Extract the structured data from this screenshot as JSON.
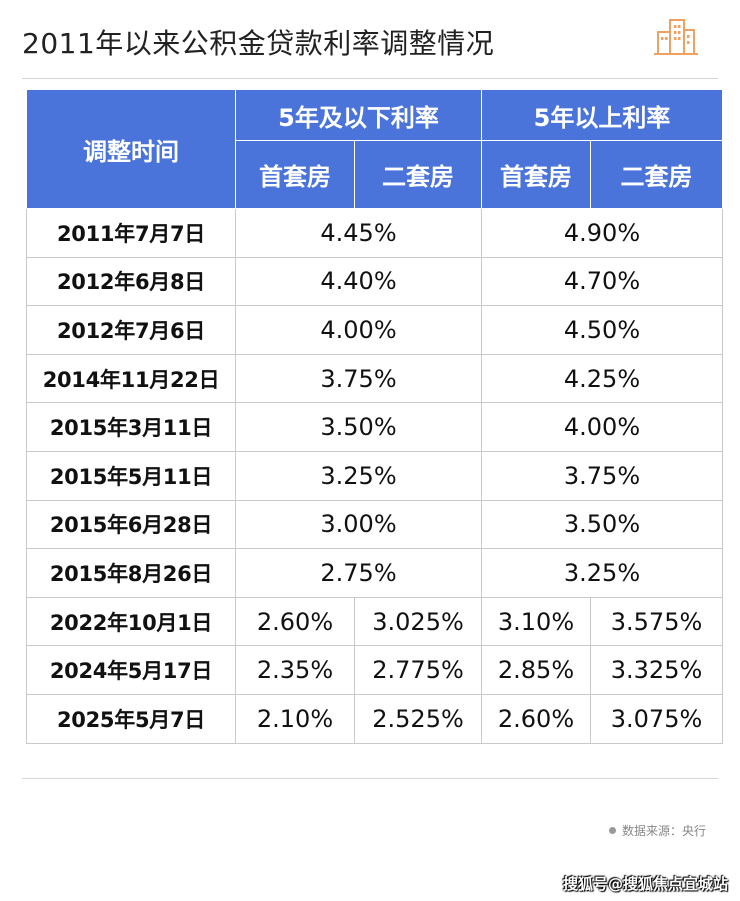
{
  "title": "2011年以来公积金贷款利率调整情况",
  "logo_icon": "buildings-icon",
  "colors": {
    "header_bg": "#4a74d9",
    "logo": "#f0a060"
  },
  "table": {
    "header": {
      "date_col": "调整时间",
      "group_short": "5年及以下利率",
      "group_long": "5年以上利率",
      "first_home": "首套房",
      "second_home": "二套房"
    },
    "rows": [
      {
        "date": "2011年7月7日",
        "short": "4.45%",
        "long": "4.90%"
      },
      {
        "date": "2012年6月8日",
        "short": "4.40%",
        "long": "4.70%"
      },
      {
        "date": "2012年7月6日",
        "short": "4.00%",
        "long": "4.50%"
      },
      {
        "date": "2014年11月22日",
        "short": "3.75%",
        "long": "4.25%"
      },
      {
        "date": "2015年3月11日",
        "short": "3.50%",
        "long": "4.00%"
      },
      {
        "date": "2015年5月11日",
        "short": "3.25%",
        "long": "3.75%"
      },
      {
        "date": "2015年6月28日",
        "short": "3.00%",
        "long": "3.50%"
      },
      {
        "date": "2015年8月26日",
        "short": "2.75%",
        "long": "3.25%"
      },
      {
        "date": "2022年10月1日",
        "short_first": "2.60%",
        "short_second": "3.025%",
        "long_first": "3.10%",
        "long_second": "3.575%"
      },
      {
        "date": "2024年5月17日",
        "short_first": "2.35%",
        "short_second": "2.775%",
        "long_first": "2.85%",
        "long_second": "3.325%"
      },
      {
        "date": "2025年5月7日",
        "short_first": "2.10%",
        "short_second": "2.525%",
        "long_first": "2.60%",
        "long_second": "3.075%"
      }
    ]
  },
  "source": "数据来源：央行",
  "watermark": "搜狐号@搜狐焦点宜城站"
}
